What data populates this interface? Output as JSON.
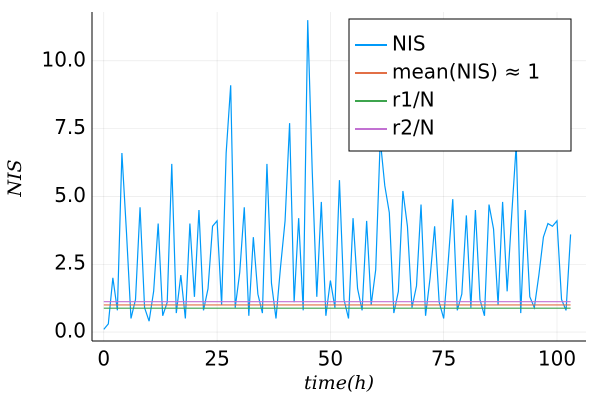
{
  "chart_data": {
    "type": "line",
    "xlabel": "time(h)",
    "ylabel": "NIS",
    "xlim": [
      -2.6,
      106.4
    ],
    "ylim": [
      -0.33,
      11.8
    ],
    "xticks": [
      0,
      25,
      50,
      75,
      100
    ],
    "yticks": [
      {
        "value": 0,
        "label": "0.0"
      },
      2.5,
      {
        "value": 5,
        "label": "5.0"
      },
      7.5,
      {
        "value": 10,
        "label": "10.0"
      }
    ],
    "grid": true,
    "legend": "top-right",
    "series": [
      {
        "name": "NIS",
        "color": "#009af9",
        "x": [
          0,
          1,
          2,
          3,
          4,
          5,
          6,
          7,
          8,
          9,
          10,
          11,
          12,
          13,
          14,
          15,
          16,
          17,
          18,
          19,
          20,
          21,
          22,
          23,
          24,
          25,
          26,
          27,
          28,
          29,
          30,
          31,
          32,
          33,
          34,
          35,
          36,
          37,
          38,
          39,
          40,
          41,
          42,
          43,
          44,
          45,
          46,
          47,
          48,
          49,
          50,
          51,
          52,
          53,
          54,
          55,
          56,
          57,
          58,
          59,
          60,
          61,
          62,
          63,
          64,
          65,
          66,
          67,
          68,
          69,
          70,
          71,
          72,
          73,
          74,
          75,
          76,
          77,
          78,
          79,
          80,
          81,
          82,
          83,
          84,
          85,
          86,
          87,
          88,
          89,
          90,
          91,
          92,
          93,
          94,
          95,
          96,
          97,
          98,
          99,
          100,
          101,
          102,
          103
        ],
        "values": [
          0.1,
          0.3,
          2.0,
          0.8,
          6.6,
          3.7,
          0.5,
          1.2,
          4.6,
          0.9,
          0.4,
          1.5,
          4.0,
          0.6,
          1.1,
          6.2,
          0.7,
          2.1,
          0.5,
          4.0,
          1.3,
          4.5,
          0.8,
          1.6,
          3.9,
          4.1,
          1.0,
          6.6,
          9.1,
          0.9,
          2.2,
          4.6,
          0.6,
          3.5,
          1.4,
          0.7,
          6.2,
          1.8,
          0.5,
          2.4,
          4.1,
          7.7,
          1.1,
          4.2,
          0.8,
          11.5,
          5.9,
          1.3,
          4.8,
          0.6,
          1.9,
          0.9,
          5.6,
          1.2,
          0.5,
          4.2,
          1.6,
          0.8,
          4.1,
          1.0,
          2.3,
          7.1,
          5.4,
          4.4,
          0.7,
          1.5,
          5.2,
          3.9,
          0.9,
          1.7,
          4.7,
          0.6,
          2.0,
          3.9,
          1.1,
          0.5,
          2.6,
          4.9,
          0.8,
          1.4,
          4.3,
          0.9,
          4.5,
          1.2,
          0.6,
          4.7,
          3.8,
          1.0,
          4.8,
          1.5,
          4.3,
          6.9,
          0.7,
          4.5,
          1.3,
          0.9,
          2.1,
          3.5,
          4.0,
          3.9,
          4.1,
          1.2,
          0.8,
          3.6
        ]
      },
      {
        "name": "mean(NIS) ≈ 1",
        "color": "#e26f46",
        "x": [
          0,
          103
        ],
        "values": [
          1.0,
          1.0
        ]
      },
      {
        "name": "r1/N",
        "color": "#3da44d",
        "x": [
          0,
          103
        ],
        "values": [
          0.88,
          0.88
        ]
      },
      {
        "name": "r2/N",
        "color": "#c271d2",
        "x": [
          0,
          103
        ],
        "values": [
          1.12,
          1.12
        ]
      }
    ]
  }
}
